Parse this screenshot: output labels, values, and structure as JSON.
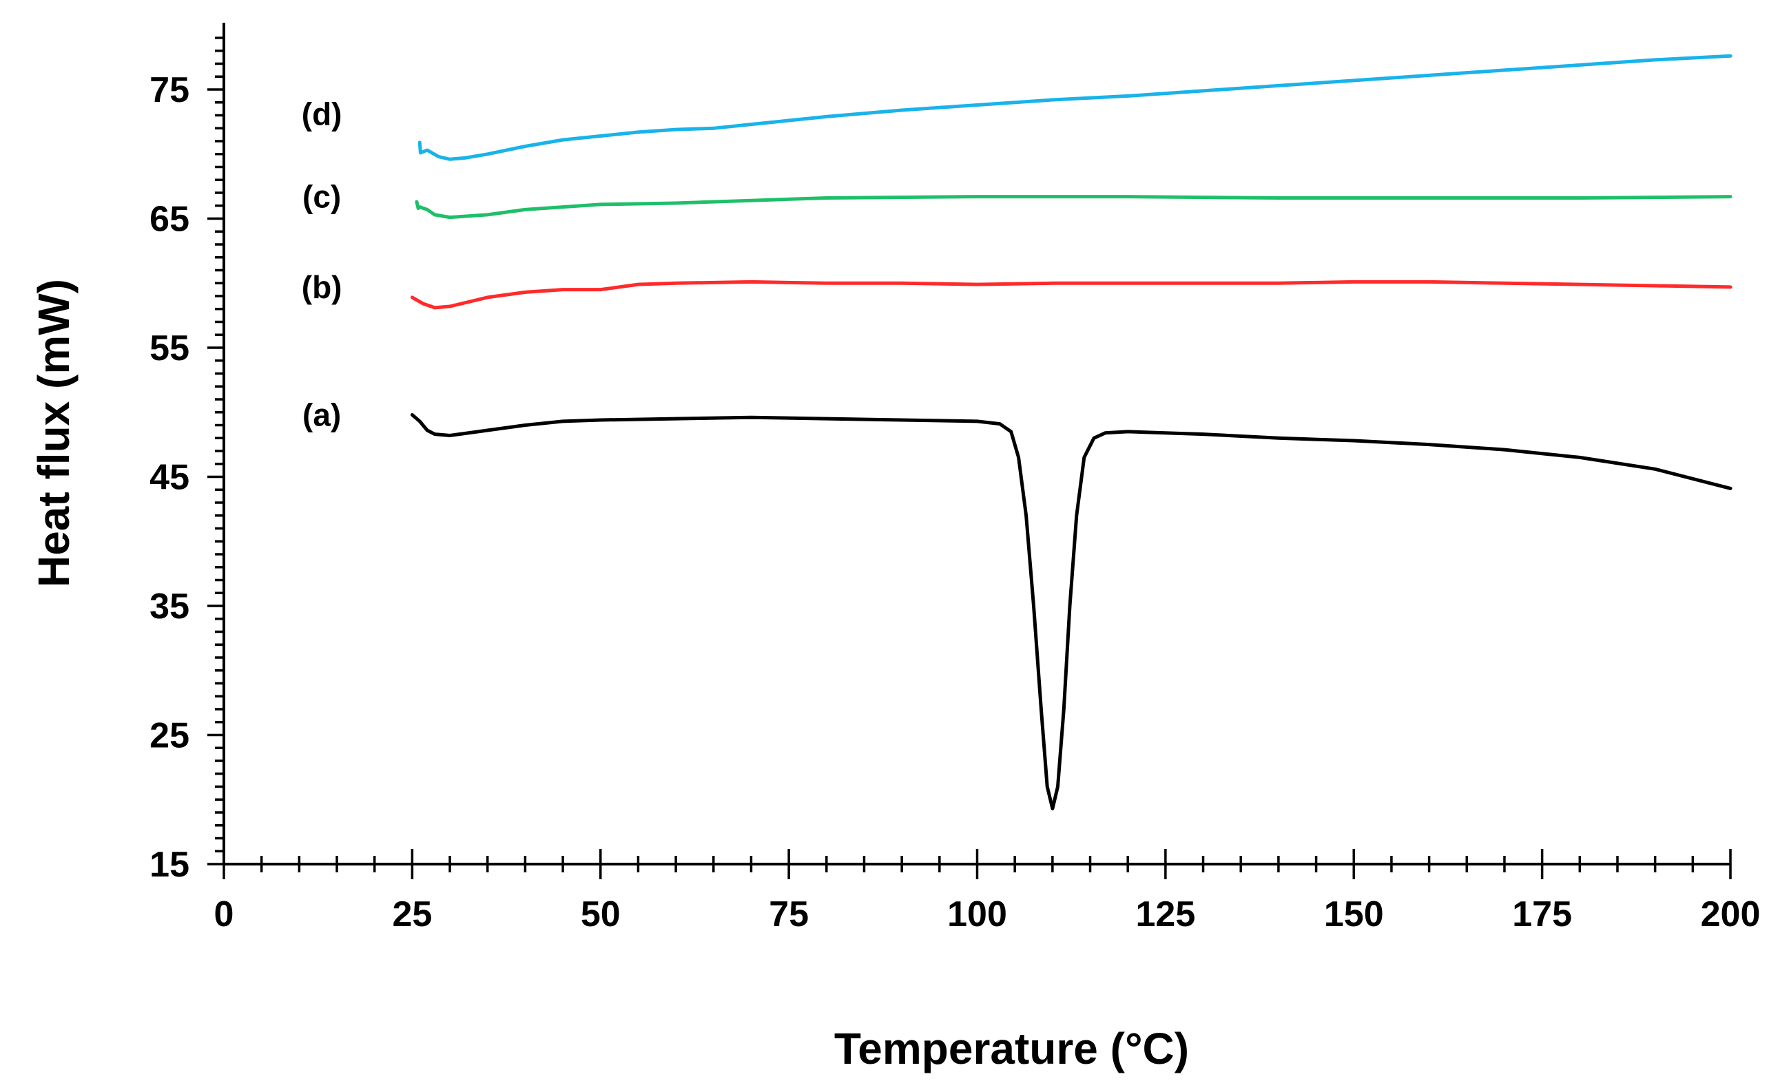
{
  "chart_data": {
    "type": "line",
    "title": "",
    "xlabel": "Temperature (°C)",
    "ylabel": "Heat flux (mW)",
    "xlim": [
      0,
      200
    ],
    "ylim": [
      15,
      80
    ],
    "x_ticks": [
      0,
      25,
      50,
      75,
      100,
      125,
      150,
      175,
      200
    ],
    "y_ticks": [
      15,
      25,
      35,
      45,
      55,
      65,
      75
    ],
    "x_minor_step": 5,
    "y_minor_step": 1,
    "grid": false,
    "series": [
      {
        "name": "(a)",
        "color": "#000000",
        "label_at": [
          13,
          49.8
        ],
        "points": [
          [
            25,
            49.8
          ],
          [
            26,
            49.3
          ],
          [
            27,
            48.6
          ],
          [
            28,
            48.3
          ],
          [
            30,
            48.2
          ],
          [
            35,
            48.6
          ],
          [
            40,
            49.0
          ],
          [
            45,
            49.3
          ],
          [
            50,
            49.4
          ],
          [
            60,
            49.5
          ],
          [
            70,
            49.6
          ],
          [
            80,
            49.5
          ],
          [
            90,
            49.4
          ],
          [
            100,
            49.3
          ],
          [
            103,
            49.1
          ],
          [
            104.5,
            48.5
          ],
          [
            105.5,
            46.5
          ],
          [
            106.5,
            42
          ],
          [
            107.5,
            35
          ],
          [
            108.5,
            27
          ],
          [
            109.3,
            21
          ],
          [
            110,
            19.3
          ],
          [
            110.7,
            21
          ],
          [
            111.5,
            27
          ],
          [
            112.3,
            35
          ],
          [
            113.2,
            42
          ],
          [
            114.2,
            46.5
          ],
          [
            115.5,
            48
          ],
          [
            117,
            48.4
          ],
          [
            120,
            48.5
          ],
          [
            130,
            48.3
          ],
          [
            140,
            48.0
          ],
          [
            150,
            47.8
          ],
          [
            160,
            47.5
          ],
          [
            170,
            47.1
          ],
          [
            180,
            46.5
          ],
          [
            190,
            45.6
          ],
          [
            200,
            44.1
          ]
        ]
      },
      {
        "name": "(b)",
        "color": "#ff2a2a",
        "label_at": [
          13,
          59.7
        ],
        "points": [
          [
            25,
            58.9
          ],
          [
            26.5,
            58.4
          ],
          [
            28,
            58.1
          ],
          [
            30,
            58.2
          ],
          [
            35,
            58.9
          ],
          [
            40,
            59.3
          ],
          [
            45,
            59.5
          ],
          [
            50,
            59.5
          ],
          [
            55,
            59.9
          ],
          [
            60,
            60.0
          ],
          [
            70,
            60.1
          ],
          [
            80,
            60.0
          ],
          [
            90,
            60.0
          ],
          [
            100,
            59.9
          ],
          [
            110,
            60.0
          ],
          [
            120,
            60.0
          ],
          [
            130,
            60.0
          ],
          [
            140,
            60.0
          ],
          [
            150,
            60.1
          ],
          [
            160,
            60.1
          ],
          [
            170,
            60.0
          ],
          [
            180,
            59.9
          ],
          [
            190,
            59.8
          ],
          [
            200,
            59.7
          ]
        ]
      },
      {
        "name": "(c)",
        "color": "#1fbf6a",
        "label_at": [
          13,
          66.7
        ],
        "points": [
          [
            25.6,
            66.3
          ],
          [
            25.8,
            65.8
          ],
          [
            26,
            65.9
          ],
          [
            27,
            65.7
          ],
          [
            28,
            65.3
          ],
          [
            30,
            65.1
          ],
          [
            35,
            65.3
          ],
          [
            40,
            65.7
          ],
          [
            45,
            65.9
          ],
          [
            50,
            66.1
          ],
          [
            60,
            66.2
          ],
          [
            70,
            66.4
          ],
          [
            80,
            66.6
          ],
          [
            100,
            66.7
          ],
          [
            120,
            66.7
          ],
          [
            140,
            66.6
          ],
          [
            160,
            66.6
          ],
          [
            180,
            66.6
          ],
          [
            200,
            66.7
          ]
        ]
      },
      {
        "name": "(d)",
        "color": "#19b3ea",
        "label_at": [
          13,
          73.1
        ],
        "points": [
          [
            26,
            70.9
          ],
          [
            26.1,
            70.1
          ],
          [
            27,
            70.3
          ],
          [
            28.5,
            69.8
          ],
          [
            30,
            69.6
          ],
          [
            32,
            69.7
          ],
          [
            35,
            70.0
          ],
          [
            40,
            70.6
          ],
          [
            45,
            71.1
          ],
          [
            50,
            71.4
          ],
          [
            55,
            71.7
          ],
          [
            60,
            71.9
          ],
          [
            65,
            72.0
          ],
          [
            70,
            72.3
          ],
          [
            75,
            72.6
          ],
          [
            80,
            72.9
          ],
          [
            90,
            73.4
          ],
          [
            100,
            73.8
          ],
          [
            110,
            74.2
          ],
          [
            120,
            74.5
          ],
          [
            130,
            74.9
          ],
          [
            140,
            75.3
          ],
          [
            150,
            75.7
          ],
          [
            160,
            76.1
          ],
          [
            170,
            76.5
          ],
          [
            180,
            76.9
          ],
          [
            190,
            77.3
          ],
          [
            200,
            77.6
          ]
        ]
      }
    ]
  }
}
